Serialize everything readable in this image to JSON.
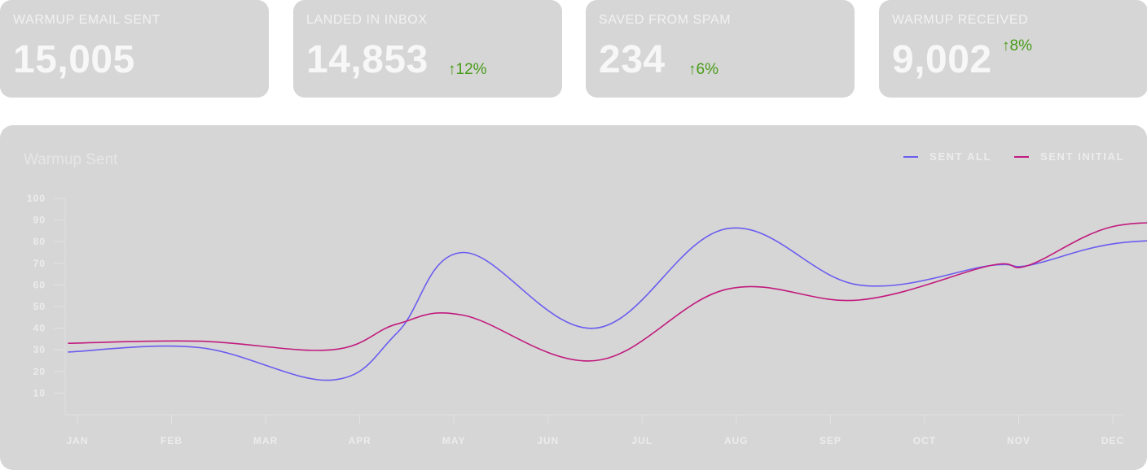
{
  "stats": [
    {
      "label": "WARMUP EMAIL SENT",
      "value": "15,005",
      "delta": ""
    },
    {
      "label": "LANDED IN INBOX",
      "value": "14,853",
      "delta": "↑12%"
    },
    {
      "label": "SAVED FROM SPAM",
      "value": "234",
      "delta": "↑6%"
    },
    {
      "label": "WARMUP RECEIVED",
      "value": "9,002",
      "delta": "↑8%"
    }
  ],
  "colors": {
    "card_bg": "#d5d6d5",
    "positive": "#4a9b1a",
    "sent_all": "#6b5cf0",
    "sent_initial": "#c21a7e"
  },
  "chart_data": {
    "type": "line",
    "title": "Warmup Sent",
    "categories": [
      "JAN",
      "FEB",
      "MAR",
      "APR",
      "MAY",
      "JUN",
      "JUL",
      "AUG",
      "SEP",
      "OCT",
      "NOV",
      "DEC"
    ],
    "y_ticks": [
      "10",
      "20",
      "30",
      "40",
      "50",
      "60",
      "70",
      "80",
      "90",
      "100"
    ],
    "ylim": [
      0,
      100
    ],
    "legend_position": "top-right",
    "series": [
      {
        "name": "SENT ALL",
        "color": "#6b5cf0",
        "x": [
          -0.1,
          1.3,
          2.7,
          3.4,
          4.1,
          5.5,
          6.9,
          8.3,
          9.7,
          10.1,
          11.0,
          12.0
        ],
        "y": [
          29,
          31,
          16,
          38,
          75,
          40,
          86,
          60,
          69,
          69,
          79,
          81
        ]
      },
      {
        "name": "SENT INITIAL",
        "color": "#c21a7e",
        "x": [
          -0.1,
          1.3,
          2.7,
          3.4,
          4.1,
          5.5,
          6.9,
          8.3,
          9.7,
          10.1,
          11.0,
          12.0
        ],
        "y": [
          33,
          34,
          30,
          42,
          46,
          25,
          58,
          53,
          69,
          69,
          87,
          88
        ]
      }
    ]
  }
}
